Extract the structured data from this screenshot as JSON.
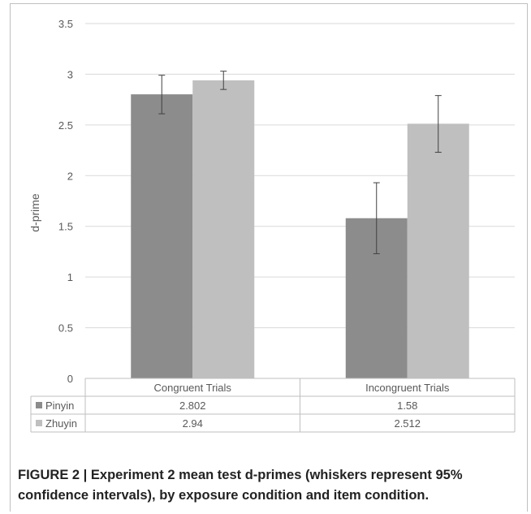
{
  "chart_data": {
    "type": "bar",
    "categories": [
      "Congruent Trials",
      "Incongruent Trials"
    ],
    "series": [
      {
        "name": "Pinyin",
        "values": [
          2.802,
          1.58
        ],
        "ci_low": [
          2.61,
          1.23
        ],
        "ci_high": [
          2.99,
          1.93
        ],
        "color": "#8c8c8c"
      },
      {
        "name": "Zhuyin",
        "values": [
          2.94,
          2.512
        ],
        "ci_low": [
          2.85,
          2.23
        ],
        "ci_high": [
          3.03,
          2.79
        ],
        "color": "#bfbfbf"
      }
    ],
    "table_values": {
      "Pinyin": [
        "2.802",
        "1.58"
      ],
      "Zhuyin": [
        "2.94",
        "2.512"
      ]
    },
    "ylabel": "d-prime",
    "ylim": [
      0,
      3.5
    ],
    "yticks": [
      "0",
      "0.5",
      "1",
      "1.5",
      "2",
      "2.5",
      "3",
      "3.5"
    ],
    "grid": true,
    "legend": "data-table"
  },
  "caption": {
    "label": "FIGURE 2 |",
    "text": "Experiment 2 mean test d-primes (whiskers represent 95% confidence intervals), by exposure condition and item condition."
  },
  "colors": {
    "grid": "#d9d9d9",
    "axis_text": "#595959",
    "whisker": "#404040"
  }
}
